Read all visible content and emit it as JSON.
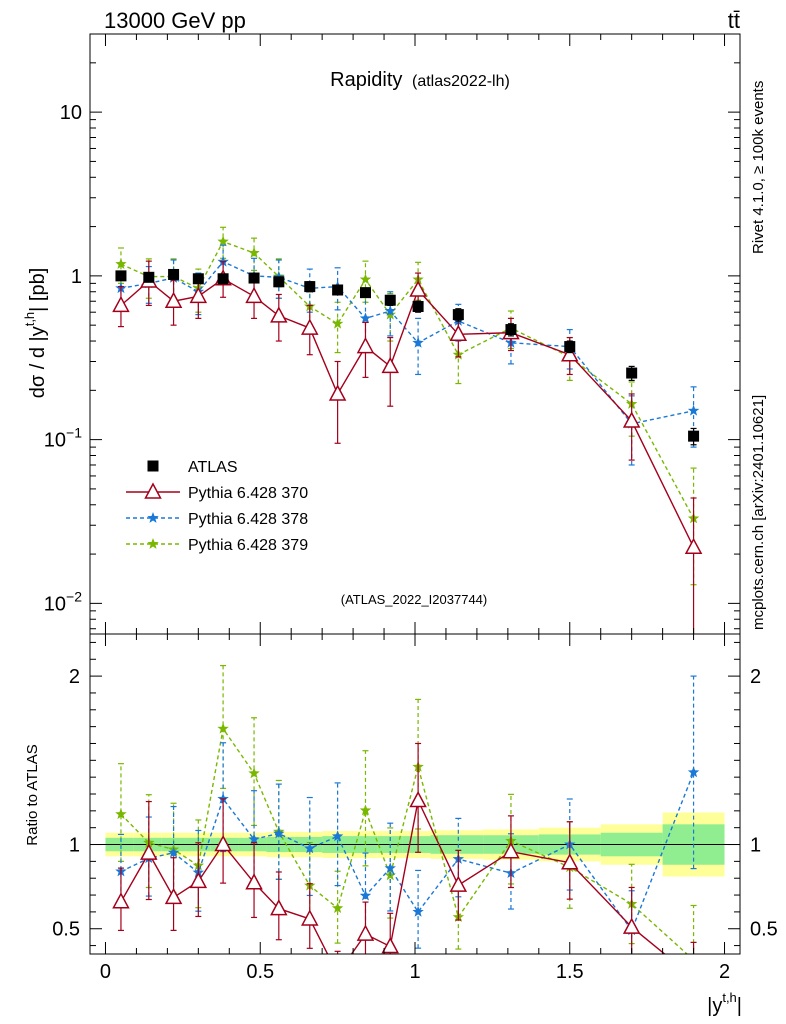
{
  "header": {
    "energy_label": "13000 GeV pp",
    "process_label": "tt̄"
  },
  "side_labels": {
    "rivet": "Rivet 4.1.0, ≥ 100k events",
    "mcplots": "mcplots.cern.ch [arXiv:2401.10621]"
  },
  "colors": {
    "atlas": "#000000",
    "p370": "#a4001c",
    "p378": "#1a78d6",
    "p379": "#79b800",
    "band_inner": "#90ee90",
    "band_outer": "#ffff99"
  },
  "chart_data": [
    {
      "type": "scatter",
      "title": "Rapidity",
      "subtitle": "(atlas2022-lh)",
      "watermark": "(ATLAS_2022_I2037744)",
      "ylabel": "dσ / d |y^{t,h}| [pb]",
      "yscale": "log",
      "ylim": [
        0.0065,
        30
      ],
      "xlim": [
        -0.05,
        2.05
      ],
      "y_ticks": [
        {
          "value": 0.01,
          "base": "10",
          "exp": "−2"
        },
        {
          "value": 0.1,
          "base": "10",
          "exp": "−1"
        },
        {
          "value": 1,
          "base": "1",
          "exp": ""
        },
        {
          "value": 10,
          "base": "10",
          "exp": ""
        }
      ],
      "x": [
        0.05,
        0.14,
        0.22,
        0.3,
        0.38,
        0.48,
        0.56,
        0.66,
        0.75,
        0.84,
        0.92,
        1.01,
        1.14,
        1.31,
        1.5,
        1.7,
        1.9
      ],
      "bin_edges": [
        0.0,
        0.09,
        0.18,
        0.26,
        0.34,
        0.43,
        0.52,
        0.61,
        0.7,
        0.79,
        0.88,
        0.96,
        1.05,
        1.22,
        1.4,
        1.6,
        1.8,
        2.0
      ],
      "series": [
        {
          "name": "ATLAS",
          "key": "atlas",
          "marker": "square",
          "values": [
            1.0,
            0.98,
            1.02,
            0.96,
            0.96,
            0.97,
            0.92,
            0.86,
            0.82,
            0.79,
            0.71,
            0.65,
            0.58,
            0.47,
            0.37,
            0.255,
            0.105
          ],
          "err_lo": [
            0.06,
            0.06,
            0.06,
            0.06,
            0.06,
            0.06,
            0.06,
            0.06,
            0.05,
            0.05,
            0.05,
            0.05,
            0.05,
            0.04,
            0.03,
            0.025,
            0.012
          ],
          "err_hi": [
            0.06,
            0.06,
            0.06,
            0.06,
            0.06,
            0.06,
            0.06,
            0.06,
            0.05,
            0.05,
            0.05,
            0.05,
            0.05,
            0.04,
            0.03,
            0.025,
            0.012
          ]
        },
        {
          "name": "Pythia 6.428 370",
          "key": "p370",
          "marker": "triangle",
          "dash": "",
          "values": [
            0.66,
            0.93,
            0.7,
            0.75,
            0.96,
            0.75,
            0.57,
            0.48,
            0.19,
            0.37,
            0.28,
            0.82,
            0.44,
            0.45,
            0.33,
            0.13,
            0.022
          ],
          "err_lo": [
            0.17,
            0.27,
            0.2,
            0.2,
            0.22,
            0.2,
            0.17,
            0.15,
            0.095,
            0.13,
            0.12,
            0.2,
            0.12,
            0.1,
            0.08,
            0.055,
            0.016
          ],
          "err_hi": [
            0.2,
            0.3,
            0.24,
            0.22,
            0.26,
            0.23,
            0.2,
            0.18,
            0.11,
            0.15,
            0.14,
            0.22,
            0.12,
            0.1,
            0.09,
            0.06,
            0.022
          ]
        },
        {
          "name": "Pythia 6.428 378",
          "key": "p378",
          "marker": "star",
          "dash": "4,3",
          "values": [
            0.84,
            0.9,
            0.97,
            0.8,
            1.22,
            1.0,
            0.98,
            0.84,
            0.86,
            0.55,
            0.61,
            0.39,
            0.53,
            0.39,
            0.37,
            0.125,
            0.15
          ],
          "err_lo": [
            0.2,
            0.22,
            0.25,
            0.22,
            0.3,
            0.26,
            0.25,
            0.24,
            0.24,
            0.18,
            0.18,
            0.14,
            0.13,
            0.1,
            0.1,
            0.055,
            0.06
          ],
          "err_hi": [
            0.22,
            0.24,
            0.28,
            0.24,
            0.32,
            0.28,
            0.27,
            0.26,
            0.26,
            0.2,
            0.19,
            0.16,
            0.14,
            0.11,
            0.1,
            0.06,
            0.06
          ]
        },
        {
          "name": "Pythia 6.428 379",
          "key": "p379",
          "marker": "star",
          "dash": "4,3",
          "values": [
            1.18,
            0.99,
            0.99,
            0.84,
            1.62,
            1.38,
            0.99,
            0.65,
            0.51,
            0.95,
            0.58,
            0.95,
            0.33,
            0.48,
            0.32,
            0.165,
            0.033
          ],
          "err_lo": [
            0.28,
            0.26,
            0.26,
            0.24,
            0.34,
            0.3,
            0.26,
            0.2,
            0.17,
            0.26,
            0.18,
            0.24,
            0.11,
            0.12,
            0.09,
            0.06,
            0.02
          ],
          "err_hi": [
            0.3,
            0.28,
            0.28,
            0.26,
            0.36,
            0.32,
            0.28,
            0.22,
            0.18,
            0.28,
            0.2,
            0.26,
            0.12,
            0.13,
            0.1,
            0.06,
            0.034
          ]
        }
      ]
    },
    {
      "type": "scatter",
      "ylabel": "Ratio to ATLAS",
      "xlabel": "|y^{t,h}|",
      "ylim": [
        0.35,
        2.25
      ],
      "xlim": [
        -0.05,
        2.05
      ],
      "x_ticks": [
        "0",
        "0.5",
        "1",
        "1.5",
        "2"
      ],
      "x_tick_values": [
        0,
        0.5,
        1,
        1.5,
        2
      ],
      "y_ticks": [
        "0.5",
        "1",
        "2"
      ],
      "y_tick_values": [
        0.5,
        1,
        2
      ],
      "band_inner": [
        0.04,
        0.04,
        0.04,
        0.04,
        0.04,
        0.04,
        0.045,
        0.045,
        0.05,
        0.05,
        0.05,
        0.05,
        0.055,
        0.055,
        0.06,
        0.07,
        0.12
      ],
      "band_outer": [
        0.07,
        0.07,
        0.07,
        0.07,
        0.07,
        0.07,
        0.075,
        0.075,
        0.08,
        0.08,
        0.08,
        0.08,
        0.085,
        0.09,
        0.1,
        0.12,
        0.19
      ]
    }
  ]
}
